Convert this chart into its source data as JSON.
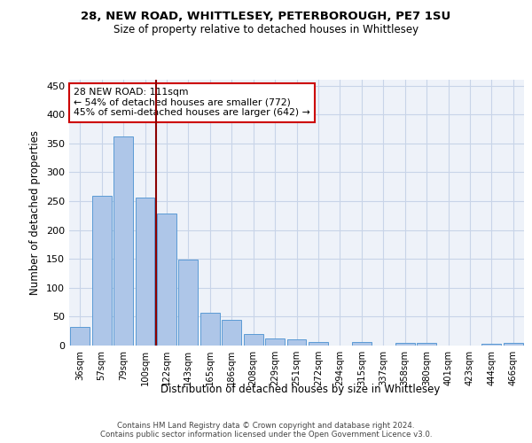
{
  "title1": "28, NEW ROAD, WHITTLESEY, PETERBOROUGH, PE7 1SU",
  "title2": "Size of property relative to detached houses in Whittlesey",
  "xlabel": "Distribution of detached houses by size in Whittlesey",
  "ylabel": "Number of detached properties",
  "categories": [
    "36sqm",
    "57sqm",
    "79sqm",
    "100sqm",
    "122sqm",
    "143sqm",
    "165sqm",
    "186sqm",
    "208sqm",
    "229sqm",
    "251sqm",
    "272sqm",
    "294sqm",
    "315sqm",
    "337sqm",
    "358sqm",
    "380sqm",
    "401sqm",
    "423sqm",
    "444sqm",
    "466sqm"
  ],
  "values": [
    32,
    259,
    362,
    256,
    228,
    148,
    57,
    45,
    20,
    12,
    11,
    6,
    0,
    6,
    0,
    4,
    5,
    0,
    0,
    3,
    4
  ],
  "bar_color": "#aec6e8",
  "bar_edge_color": "#5b9bd5",
  "vline_color": "#8b0000",
  "annotation_text": "28 NEW ROAD: 111sqm\n← 54% of detached houses are smaller (772)\n45% of semi-detached houses are larger (642) →",
  "annotation_box_color": "#ffffff",
  "annotation_box_edge_color": "#cc0000",
  "ylim": [
    0,
    460
  ],
  "yticks": [
    0,
    50,
    100,
    150,
    200,
    250,
    300,
    350,
    400,
    450
  ],
  "footer": "Contains HM Land Registry data © Crown copyright and database right 2024.\nContains public sector information licensed under the Open Government Licence v3.0.",
  "background_color": "#eef2f9",
  "grid_color": "#c8d4e8"
}
